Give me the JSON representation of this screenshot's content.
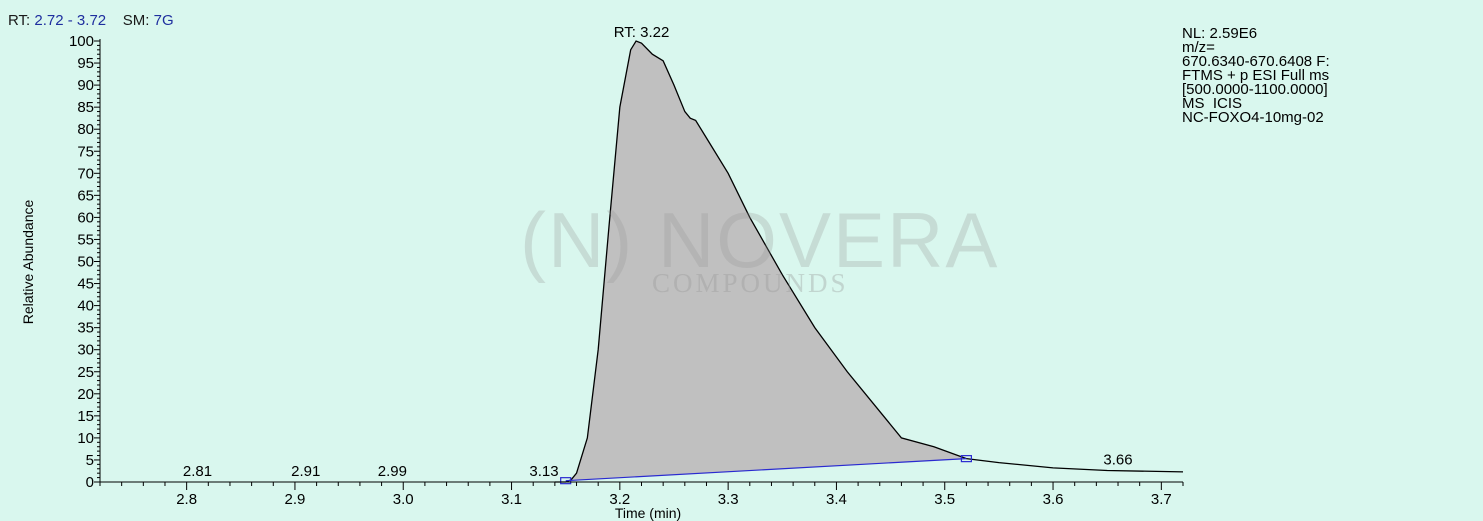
{
  "header": {
    "rt_label": "RT: ",
    "rt_range": "2.72 - 3.72",
    "sm_label": "SM: ",
    "sm_value": "7G"
  },
  "info": {
    "lines": [
      "NL: 2.59E6",
      "m/z=",
      "670.6340-670.6408 F:",
      "FTMS + p ESI Full ms",
      "[500.0000-1100.0000]",
      "MS  ICIS",
      "NC-FOXO4-10mg-02"
    ]
  },
  "watermark": {
    "brand": "(N) NOVERA",
    "sub": "COMPOUNDS"
  },
  "colors": {
    "background": "#d9f7ee",
    "peak_fill": "#c0c0c0",
    "trace": "#000000",
    "baseline": "#2a2ad0",
    "header_text": "#1f2f9f"
  },
  "chart_data": {
    "type": "area",
    "xlabel": "Time (min)",
    "ylabel": "Relative Abundance",
    "xlim": [
      2.72,
      3.72
    ],
    "ylim": [
      0,
      100
    ],
    "xticks": [
      "2.8",
      "2.9",
      "3.0",
      "3.1",
      "3.2",
      "3.3",
      "3.4",
      "3.5",
      "3.6",
      "3.7"
    ],
    "yticks": [
      "0",
      "5",
      "10",
      "15",
      "20",
      "25",
      "30",
      "35",
      "40",
      "45",
      "50",
      "55",
      "60",
      "65",
      "70",
      "75",
      "80",
      "85",
      "90",
      "95",
      "100"
    ],
    "x": [
      3.14,
      3.15,
      3.155,
      3.16,
      3.17,
      3.18,
      3.19,
      3.2,
      3.21,
      3.215,
      3.22,
      3.23,
      3.24,
      3.25,
      3.26,
      3.265,
      3.27,
      3.28,
      3.3,
      3.32,
      3.35,
      3.38,
      3.41,
      3.44,
      3.46,
      3.49,
      3.52,
      3.55,
      3.6,
      3.65,
      3.72
    ],
    "y": [
      0,
      0,
      0.5,
      2,
      10,
      30,
      58,
      85,
      98,
      100,
      99.5,
      97,
      95.5,
      90,
      84,
      82.5,
      82,
      78,
      70,
      60,
      47,
      35,
      25,
      16,
      10,
      8,
      5.3,
      4.4,
      3.2,
      2.6,
      2.3
    ],
    "peak": {
      "label": "RT: 3.22",
      "x": 3.22,
      "y": 100
    },
    "peak_bounds": [
      {
        "x": 3.15,
        "y": 0.3
      },
      {
        "x": 3.52,
        "y": 5.3
      }
    ],
    "annotations": [
      {
        "text": "2.81",
        "x": 2.81,
        "y": 0
      },
      {
        "text": "2.91",
        "x": 2.91,
        "y": 0
      },
      {
        "text": "2.99",
        "x": 2.99,
        "y": 0
      },
      {
        "text": "3.13",
        "x": 3.13,
        "y": 0
      },
      {
        "text": "3.66",
        "x": 3.66,
        "y": 2.6
      }
    ],
    "grid": false,
    "legend": "none"
  }
}
